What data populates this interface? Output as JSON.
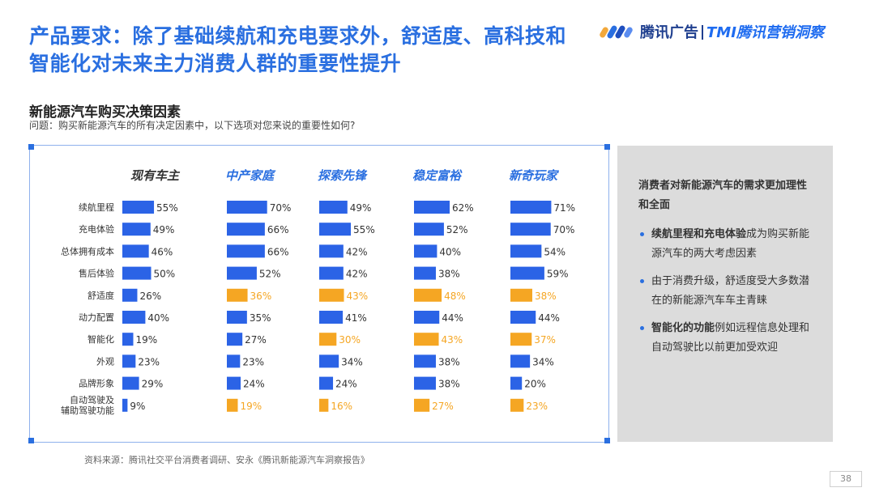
{
  "header": {
    "title": "产品要求：除了基础续航和充电要求外，舒适度、高科技和智能化对未来主力消费人群的重要性提升",
    "logo_text_a": "腾讯广告",
    "logo_text_b": "TMI腾讯营销洞察"
  },
  "section": {
    "subtitle": "新能源汽车购买决策因素",
    "question": "问题：购买新能源汽车的所有决定因素中，以下选项对您来说的重要性如何?"
  },
  "chart_data": {
    "type": "bar",
    "orientation": "horizontal",
    "categories": [
      "续航里程",
      "充电体验",
      "总体拥有成本",
      "售后体验",
      "舒适度",
      "动力配置",
      "智能化",
      "外观",
      "品牌形象",
      "自动驾驶及辅助驾驶功能"
    ],
    "series": [
      {
        "name": "现有车主",
        "values": [
          55,
          49,
          46,
          50,
          26,
          40,
          19,
          23,
          29,
          9
        ],
        "highlight": [
          false,
          false,
          false,
          false,
          false,
          false,
          false,
          false,
          false,
          false
        ]
      },
      {
        "name": "中产家庭",
        "values": [
          70,
          66,
          66,
          52,
          36,
          35,
          27,
          23,
          24,
          19
        ],
        "highlight": [
          false,
          false,
          false,
          false,
          true,
          false,
          false,
          false,
          false,
          true
        ]
      },
      {
        "name": "探索先锋",
        "values": [
          49,
          55,
          42,
          42,
          43,
          41,
          30,
          34,
          24,
          16
        ],
        "highlight": [
          false,
          false,
          false,
          false,
          true,
          false,
          true,
          false,
          false,
          true
        ]
      },
      {
        "name": "稳定富裕",
        "values": [
          62,
          52,
          40,
          38,
          48,
          44,
          43,
          38,
          38,
          27
        ],
        "highlight": [
          false,
          false,
          false,
          false,
          true,
          false,
          true,
          false,
          false,
          true
        ]
      },
      {
        "name": "新奇玩家",
        "values": [
          71,
          70,
          54,
          59,
          38,
          44,
          37,
          34,
          20,
          23
        ],
        "highlight": [
          false,
          false,
          false,
          false,
          true,
          false,
          true,
          false,
          false,
          true
        ]
      }
    ],
    "unit": "%",
    "colors": {
      "base": "#2b63e6",
      "highlight": "#f5a623",
      "series_title_owner": "#333333",
      "series_title_other": "#2a6fe0"
    }
  },
  "sidebar": {
    "title": "消费者对新能源汽车的需求更加理性和全面",
    "items": [
      {
        "bold": "续航里程和充电体验",
        "rest": "成为购买新能源汽车的两大考虑因素"
      },
      {
        "bold": "",
        "rest": "由于消费升级，舒适度受大多数潜在的新能源汽车车主青睐"
      },
      {
        "bold": "智能化的功能",
        "rest": "例如远程信息处理和自动驾驶比以前更加受欢迎"
      }
    ]
  },
  "footer": {
    "source": "资料来源：腾讯社交平台消费者调研、安永《腾讯新能源汽车洞察报告》",
    "page": "38"
  }
}
